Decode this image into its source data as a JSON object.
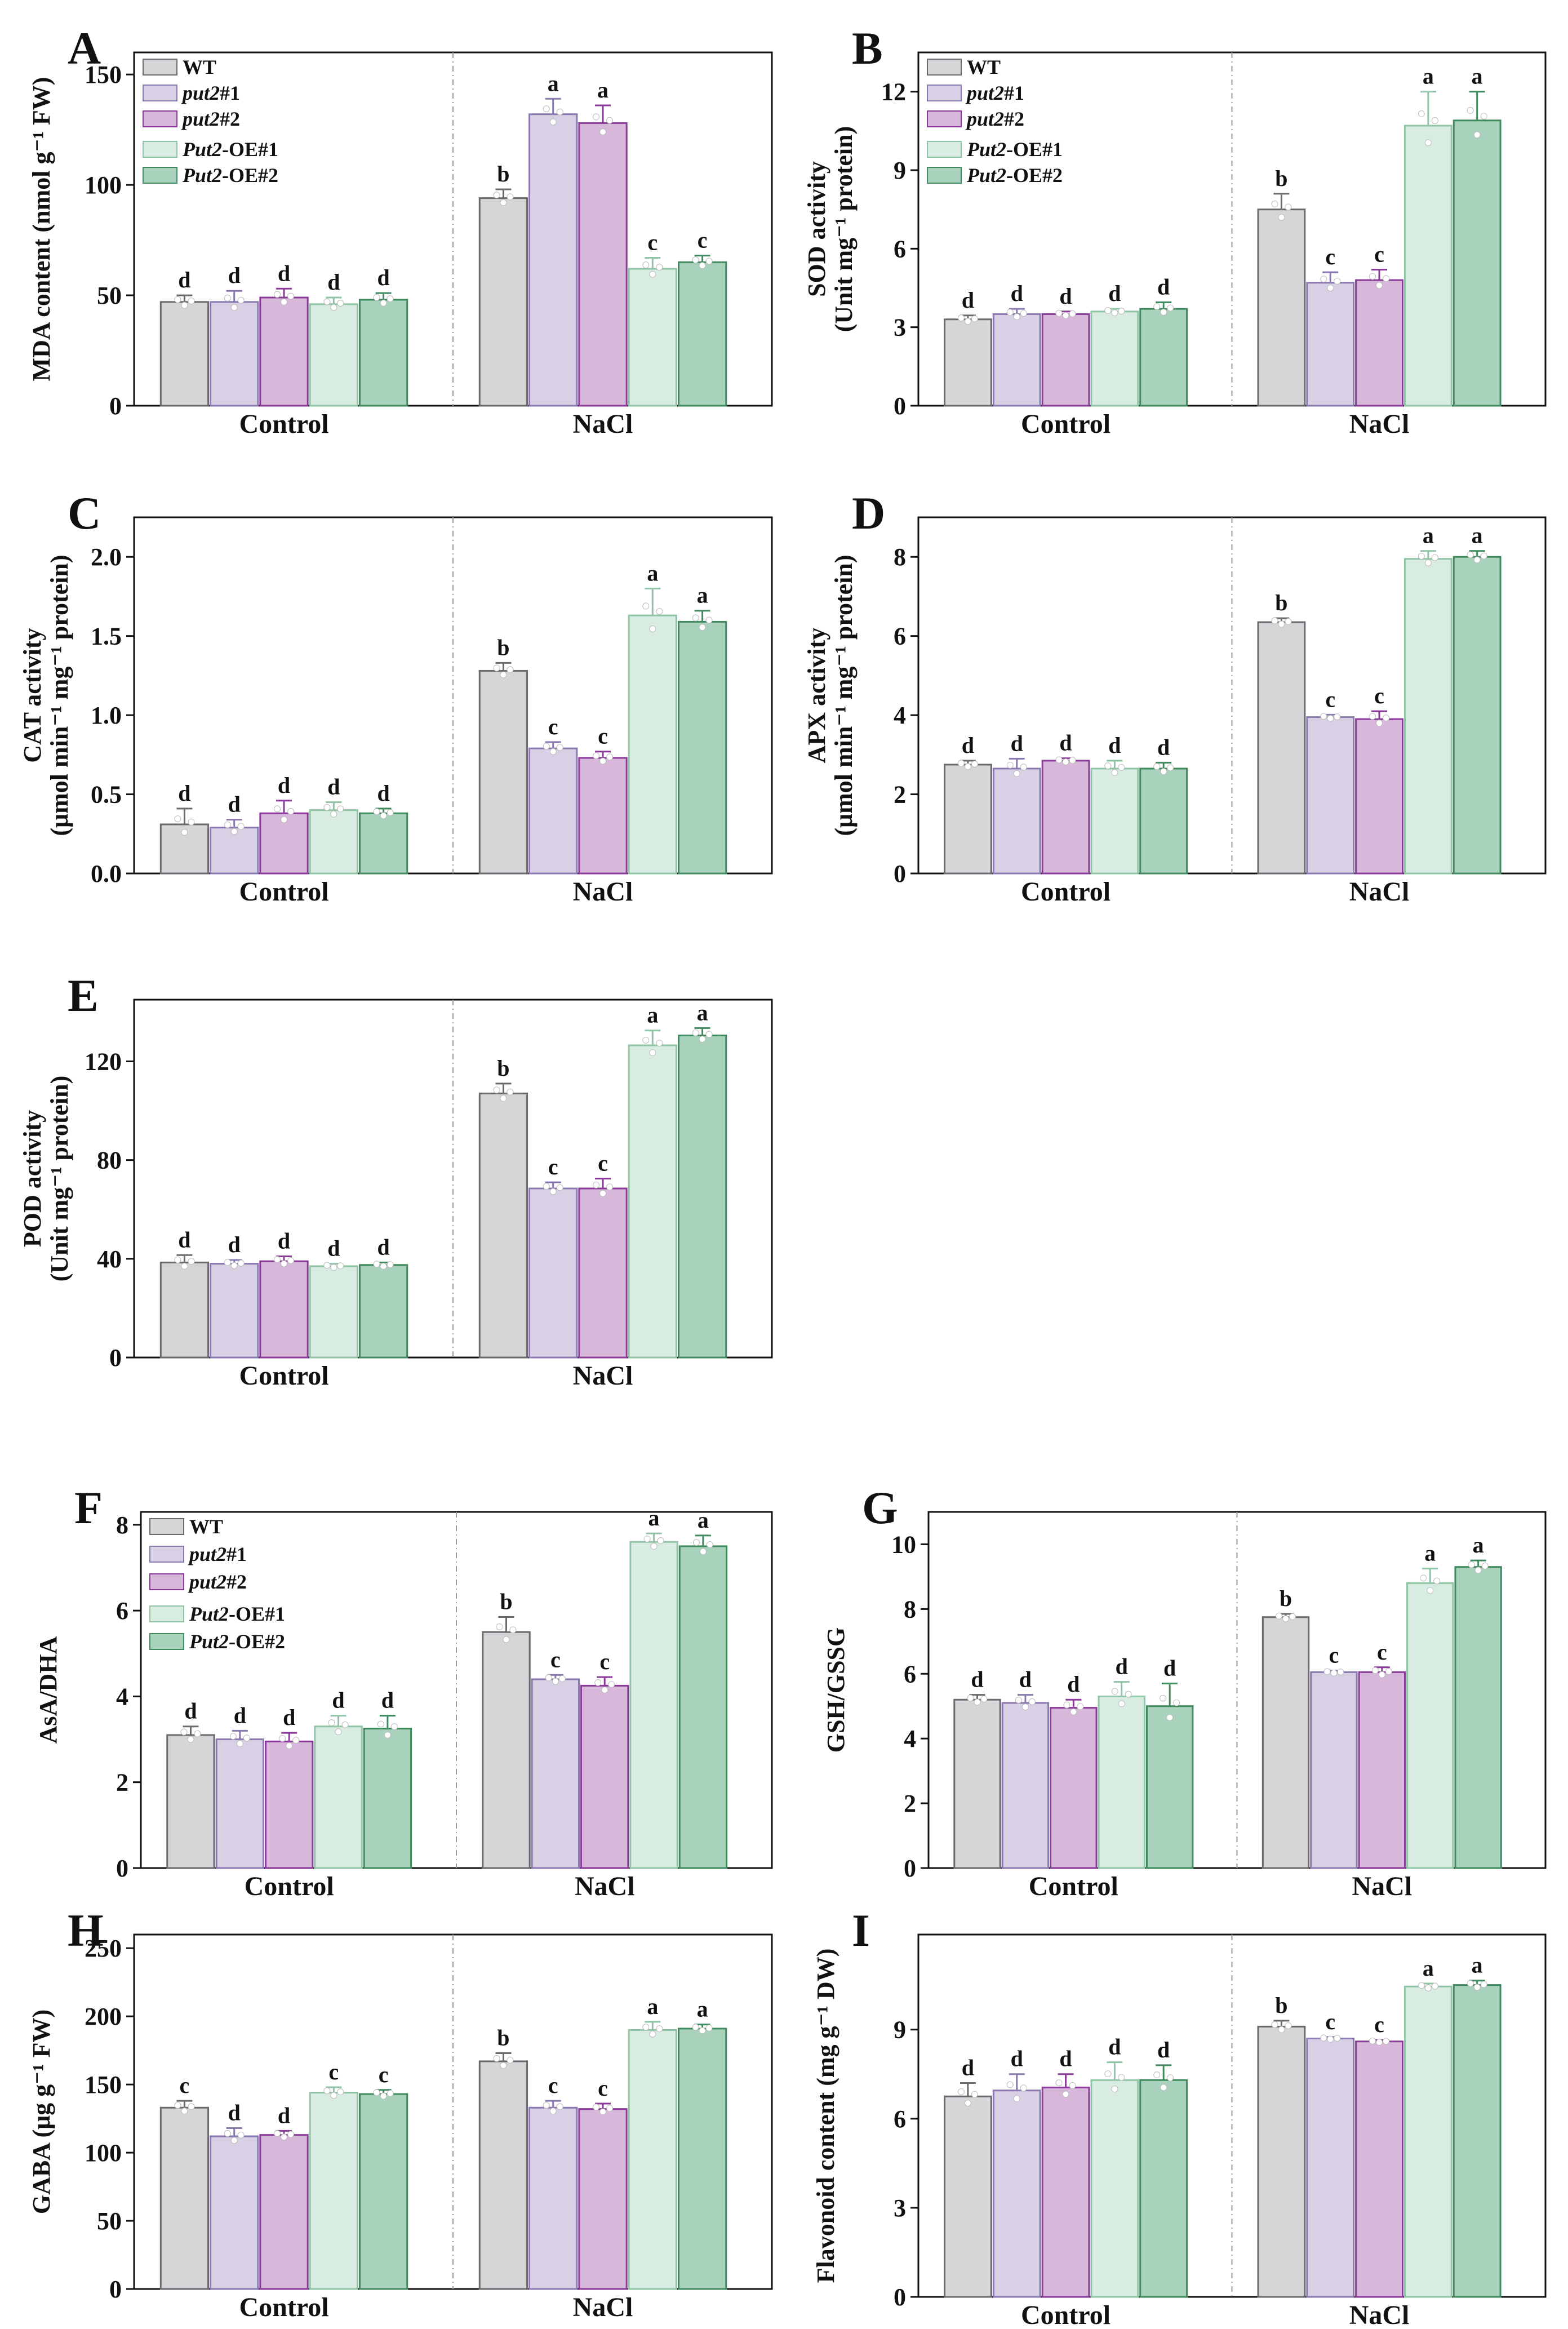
{
  "series_names": [
    "WT",
    "put2#1",
    "put2#2",
    "Put2-OE#1",
    "Put2-OE#2"
  ],
  "series_colors": {
    "fill": [
      "#d6d6d8",
      "#d8d0e4",
      "#d8b8da",
      "#d9ece2",
      "#a9d2bc"
    ],
    "stroke": [
      "#6a6a6e",
      "#8a78b0",
      "#8a3a98",
      "#8fc5a5",
      "#3f8a5e"
    ]
  },
  "chart_data": [
    {
      "type": "bar",
      "id": "A",
      "letter": "A",
      "ylabel": "MDA content (nmol g⁻¹ FW)",
      "ylim": [
        0,
        160
      ],
      "yticks": [
        0,
        50,
        100,
        150
      ],
      "categories": [
        "Control",
        "NaCl"
      ],
      "series": [
        {
          "name": "WT",
          "values": [
            47,
            94
          ],
          "errors": [
            3,
            4
          ],
          "letters": [
            "d",
            "b"
          ]
        },
        {
          "name": "put2#1",
          "values": [
            47,
            132
          ],
          "errors": [
            5,
            7
          ],
          "letters": [
            "d",
            "a"
          ]
        },
        {
          "name": "put2#2",
          "values": [
            49,
            128
          ],
          "errors": [
            4,
            8
          ],
          "letters": [
            "d",
            "a"
          ]
        },
        {
          "name": "Put2-OE#1",
          "values": [
            46,
            62
          ],
          "errors": [
            3,
            5
          ],
          "letters": [
            "d",
            "c"
          ]
        },
        {
          "name": "Put2-OE#2",
          "values": [
            48,
            65
          ],
          "errors": [
            3,
            3
          ],
          "letters": [
            "d",
            "c"
          ]
        }
      ],
      "legend": true
    },
    {
      "type": "bar",
      "id": "B",
      "letter": "B",
      "ylabel": [
        "SOD activity",
        "(Unit mg⁻¹ protein)"
      ],
      "ylim": [
        0,
        13.5
      ],
      "yticks": [
        0,
        3,
        6,
        9,
        12
      ],
      "categories": [
        "Control",
        "NaCl"
      ],
      "series": [
        {
          "name": "WT",
          "values": [
            3.3,
            7.5
          ],
          "errors": [
            0.15,
            0.6
          ],
          "letters": [
            "d",
            "b"
          ]
        },
        {
          "name": "put2#1",
          "values": [
            3.5,
            4.7
          ],
          "errors": [
            0.2,
            0.4
          ],
          "letters": [
            "d",
            "c"
          ]
        },
        {
          "name": "put2#2",
          "values": [
            3.5,
            4.8
          ],
          "errors": [
            0.1,
            0.4
          ],
          "letters": [
            "d",
            "c"
          ]
        },
        {
          "name": "Put2-OE#1",
          "values": [
            3.6,
            10.7
          ],
          "errors": [
            0.1,
            1.3
          ],
          "letters": [
            "d",
            "a"
          ]
        },
        {
          "name": "Put2-OE#2",
          "values": [
            3.7,
            10.9
          ],
          "errors": [
            0.25,
            1.1
          ],
          "letters": [
            "d",
            "a"
          ]
        }
      ],
      "legend": true
    },
    {
      "type": "bar",
      "id": "C",
      "letter": "C",
      "ylabel": [
        "CAT activity",
        "(μmol min⁻¹ mg⁻¹ protein)"
      ],
      "ylim": [
        0,
        2.25
      ],
      "yticks": [
        0.0,
        0.5,
        1.0,
        1.5,
        2.0
      ],
      "tick_decimals": 1,
      "categories": [
        "Control",
        "NaCl"
      ],
      "series": [
        {
          "name": "WT",
          "values": [
            0.31,
            1.28
          ],
          "errors": [
            0.1,
            0.05
          ],
          "letters": [
            "d",
            "b"
          ]
        },
        {
          "name": "put2#1",
          "values": [
            0.29,
            0.79
          ],
          "errors": [
            0.05,
            0.04
          ],
          "letters": [
            "d",
            "c"
          ]
        },
        {
          "name": "put2#2",
          "values": [
            0.38,
            0.73
          ],
          "errors": [
            0.08,
            0.04
          ],
          "letters": [
            "d",
            "c"
          ]
        },
        {
          "name": "Put2-OE#1",
          "values": [
            0.4,
            1.63
          ],
          "errors": [
            0.05,
            0.17
          ],
          "letters": [
            "d",
            "a"
          ]
        },
        {
          "name": "Put2-OE#2",
          "values": [
            0.38,
            1.59
          ],
          "errors": [
            0.03,
            0.07
          ],
          "letters": [
            "d",
            "a"
          ]
        }
      ],
      "legend": false
    },
    {
      "type": "bar",
      "id": "D",
      "letter": "D",
      "ylabel": [
        "APX activity",
        "(μmol min⁻¹ mg⁻¹ protein)"
      ],
      "ylim": [
        0,
        9
      ],
      "yticks": [
        0,
        2,
        4,
        6,
        8
      ],
      "categories": [
        "Control",
        "NaCl"
      ],
      "series": [
        {
          "name": "WT",
          "values": [
            2.75,
            6.35
          ],
          "errors": [
            0.1,
            0.1
          ],
          "letters": [
            "d",
            "b"
          ]
        },
        {
          "name": "put2#1",
          "values": [
            2.65,
            3.95
          ],
          "errors": [
            0.25,
            0.06
          ],
          "letters": [
            "d",
            "c"
          ]
        },
        {
          "name": "put2#2",
          "values": [
            2.85,
            3.9
          ],
          "errors": [
            0.06,
            0.2
          ],
          "letters": [
            "d",
            "c"
          ]
        },
        {
          "name": "Put2-OE#1",
          "values": [
            2.65,
            7.95
          ],
          "errors": [
            0.2,
            0.2
          ],
          "letters": [
            "d",
            "a"
          ]
        },
        {
          "name": "Put2-OE#2",
          "values": [
            2.65,
            8.0
          ],
          "errors": [
            0.15,
            0.15
          ],
          "letters": [
            "d",
            "a"
          ]
        }
      ],
      "legend": false
    },
    {
      "type": "bar",
      "id": "E",
      "letter": "E",
      "ylabel": [
        "POD activity",
        "(Unit mg⁻¹ protein)"
      ],
      "ylim": [
        0,
        145
      ],
      "yticks": [
        0,
        40,
        80,
        120
      ],
      "categories": [
        "Control",
        "NaCl"
      ],
      "series": [
        {
          "name": "WT",
          "values": [
            38.5,
            107
          ],
          "errors": [
            3,
            4
          ],
          "letters": [
            "d",
            "b"
          ]
        },
        {
          "name": "put2#1",
          "values": [
            38,
            68.5
          ],
          "errors": [
            1.5,
            2.5
          ],
          "letters": [
            "d",
            "c"
          ]
        },
        {
          "name": "put2#2",
          "values": [
            39,
            68.5
          ],
          "errors": [
            2,
            4
          ],
          "letters": [
            "d",
            "c"
          ]
        },
        {
          "name": "Put2-OE#1",
          "values": [
            37,
            126.5
          ],
          "errors": [
            1,
            6
          ],
          "letters": [
            "d",
            "a"
          ]
        },
        {
          "name": "Put2-OE#2",
          "values": [
            37.5,
            130.5
          ],
          "errors": [
            1,
            3
          ],
          "letters": [
            "d",
            "a"
          ]
        }
      ],
      "legend": false
    },
    {
      "type": "bar",
      "id": "F",
      "letter": "F",
      "ylabel": "AsA/DHA",
      "ylim": [
        0,
        8.3
      ],
      "yticks": [
        0,
        2,
        4,
        6,
        8
      ],
      "categories": [
        "Control",
        "NaCl"
      ],
      "series": [
        {
          "name": "WT",
          "values": [
            3.1,
            5.5
          ],
          "errors": [
            0.2,
            0.35
          ],
          "letters": [
            "d",
            "b"
          ]
        },
        {
          "name": "put2#1",
          "values": [
            3.0,
            4.4
          ],
          "errors": [
            0.2,
            0.1
          ],
          "letters": [
            "d",
            "c"
          ]
        },
        {
          "name": "put2#2",
          "values": [
            2.95,
            4.25
          ],
          "errors": [
            0.2,
            0.2
          ],
          "letters": [
            "d",
            "c"
          ]
        },
        {
          "name": "Put2-OE#1",
          "values": [
            3.3,
            7.6
          ],
          "errors": [
            0.25,
            0.2
          ],
          "letters": [
            "d",
            "a"
          ]
        },
        {
          "name": "Put2-OE#2",
          "values": [
            3.25,
            7.5
          ],
          "errors": [
            0.3,
            0.25
          ],
          "letters": [
            "d",
            "a"
          ]
        }
      ],
      "legend": true
    },
    {
      "type": "bar",
      "id": "G",
      "letter": "G",
      "ylabel": "GSH/GSSG",
      "ylim": [
        0,
        11
      ],
      "yticks": [
        0,
        2,
        4,
        6,
        8,
        10
      ],
      "categories": [
        "Control",
        "NaCl"
      ],
      "series": [
        {
          "name": "WT",
          "values": [
            5.2,
            7.75
          ],
          "errors": [
            0.15,
            0.1
          ],
          "letters": [
            "d",
            "b"
          ]
        },
        {
          "name": "put2#1",
          "values": [
            5.1,
            6.05
          ],
          "errors": [
            0.25,
            0.05
          ],
          "letters": [
            "d",
            "c"
          ]
        },
        {
          "name": "put2#2",
          "values": [
            4.95,
            6.05
          ],
          "errors": [
            0.25,
            0.15
          ],
          "letters": [
            "d",
            "c"
          ]
        },
        {
          "name": "Put2-OE#1",
          "values": [
            5.3,
            8.8
          ],
          "errors": [
            0.45,
            0.45
          ],
          "letters": [
            "d",
            "a"
          ]
        },
        {
          "name": "Put2-OE#2",
          "values": [
            5.0,
            9.3
          ],
          "errors": [
            0.7,
            0.2
          ],
          "letters": [
            "d",
            "a"
          ]
        }
      ],
      "legend": false
    },
    {
      "type": "bar",
      "id": "H",
      "letter": "H",
      "ylabel": "GABA (μg g⁻¹ FW)",
      "ylim": [
        0,
        260
      ],
      "yticks": [
        0,
        50,
        100,
        150,
        200,
        250
      ],
      "categories": [
        "Control",
        "NaCl"
      ],
      "series": [
        {
          "name": "WT",
          "values": [
            133,
            167
          ],
          "errors": [
            5,
            6
          ],
          "letters": [
            "c",
            "b"
          ]
        },
        {
          "name": "put2#1",
          "values": [
            112,
            133
          ],
          "errors": [
            6,
            5
          ],
          "letters": [
            "d",
            "c"
          ]
        },
        {
          "name": "put2#2",
          "values": [
            113,
            132
          ],
          "errors": [
            3,
            4
          ],
          "letters": [
            "d",
            "c"
          ]
        },
        {
          "name": "Put2-OE#1",
          "values": [
            144,
            190
          ],
          "errors": [
            4,
            6
          ],
          "letters": [
            "c",
            "a"
          ]
        },
        {
          "name": "Put2-OE#2",
          "values": [
            143,
            191
          ],
          "errors": [
            3,
            3
          ],
          "letters": [
            "c",
            "a"
          ]
        }
      ],
      "legend": false
    },
    {
      "type": "bar",
      "id": "I",
      "letter": "I",
      "ylabel": "Flavonoid content (mg g⁻¹ DW)",
      "ylim": [
        0,
        12.2
      ],
      "yticks": [
        0,
        3,
        6,
        9
      ],
      "categories": [
        "Control",
        "NaCl"
      ],
      "series": [
        {
          "name": "WT",
          "values": [
            6.75,
            9.1
          ],
          "errors": [
            0.45,
            0.2
          ],
          "letters": [
            "d",
            "b"
          ]
        },
        {
          "name": "put2#1",
          "values": [
            6.95,
            8.7
          ],
          "errors": [
            0.55,
            0.05
          ],
          "letters": [
            "d",
            "c"
          ]
        },
        {
          "name": "put2#2",
          "values": [
            7.05,
            8.6
          ],
          "errors": [
            0.45,
            0.05
          ],
          "letters": [
            "d",
            "c"
          ]
        },
        {
          "name": "Put2-OE#1",
          "values": [
            7.3,
            10.45
          ],
          "errors": [
            0.6,
            0.1
          ],
          "letters": [
            "d",
            "a"
          ]
        },
        {
          "name": "Put2-OE#2",
          "values": [
            7.3,
            10.5
          ],
          "errors": [
            0.5,
            0.15
          ],
          "letters": [
            "d",
            "a"
          ]
        }
      ],
      "legend": false
    }
  ]
}
